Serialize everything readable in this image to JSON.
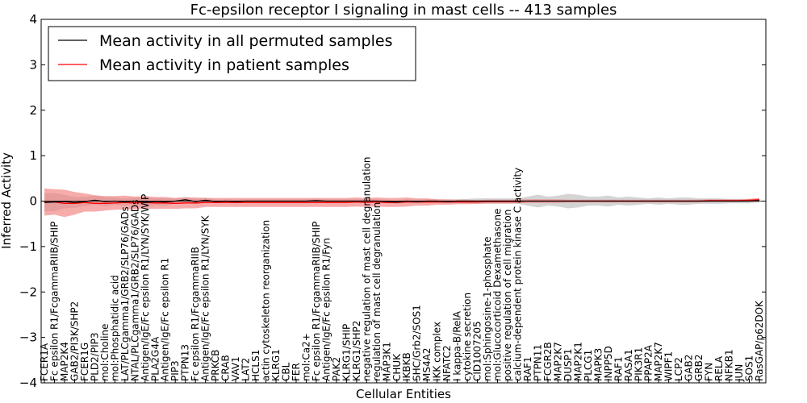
{
  "chart_data": {
    "type": "line",
    "title": "Fc-epsilon receptor I signaling in mast cells -- 413 samples",
    "xlabel": "Cellular Entities",
    "ylabel": "Inferred Activity",
    "ylim": [
      -4,
      4
    ],
    "yticks": [
      "-4",
      "-3",
      "-2",
      "-1",
      "0",
      "1",
      "2",
      "3",
      "4"
    ],
    "legend": {
      "position": "top-left",
      "entries": [
        {
          "label": "Mean activity in all permuted samples",
          "color": "#000000"
        },
        {
          "label": "Mean activity in patient samples",
          "color": "#ff0000"
        }
      ]
    },
    "categories": [
      "FCER1A",
      "Fc epsilon R1/FcgammaRIIB/SHIP",
      "MAP2K4",
      "GAB2/PI3K/SHP2",
      "FCER1G",
      "PLD2/PIP3",
      "mol:Choline",
      "mol:Phosphatidic acid",
      "LAT/PLCgamma1/GRB2/SLP76/GADs",
      "NTAL/PLCgamma1/GRB2/SLP76/GADs",
      "Antigen/IgE/Fc epsilon R1/LYN/SYK/WIP",
      "PLA2G4A",
      "Antigen/IgE/Fc epsilon R1",
      "PIP3",
      "PTPN13",
      "Fc epsilon R1/FcgammaRIIB",
      "Antigen/IgE/Fc epsilon R1/LYN/SYK",
      "PRKCB",
      "CRAB",
      "VAV1",
      "LAT2",
      "HCLS1",
      "actin cytoskeleton reorganization",
      "KLRG1",
      "CBL",
      "FER",
      "mol:Ca2+",
      "Fc epsilon R1/FcgammaRIIB/SHIP",
      "Antigen/IgE/Fc epsilon R1/Fyn",
      "PAK2",
      "KLRG1/SHIP",
      "KLRG1/SHP2",
      "negative regulation of mast cell degranulation",
      "regulation of mast cell degranulation",
      "MAP3K1",
      "CHUK",
      "IKBKB",
      "SHC/Grb2/SOS1",
      "MS4A2",
      "IKK complex",
      "NFATC2",
      "I kappa-B/RelA",
      "cytokine secretion",
      "CID1007205",
      "mol:Sphingosine-1-phosphate",
      "mol:Glucocorticoid Dexamethasone",
      "positive regulation of cell migration",
      "calcium-dependent protein kinase C activity",
      "RAF1",
      "PTPN11",
      "FCGR2B",
      "MAP2K7",
      "DUSP1",
      "MAP2K1",
      "PLCG1",
      "MAPK3",
      "INPP5D",
      "RAF1",
      "RASA1",
      "PIK3R1",
      "PPAP2A",
      "MAP2K7",
      "WIPF1",
      "LCP2",
      "GAB2",
      "GRB2",
      "FYN",
      "RELA",
      "NFKB1",
      "JUN",
      "SOS1",
      "RasGAP/p62DOK"
    ],
    "series": [
      {
        "name": "Mean activity in all permuted samples",
        "color": "#000000",
        "values": [
          -0.03,
          -0.02,
          -0.01,
          -0.03,
          -0.01,
          0.02,
          -0.01,
          0.0,
          -0.02,
          0.0,
          -0.03,
          -0.01,
          -0.02,
          0.0,
          0.03,
          -0.01,
          0.02,
          -0.01,
          0.0,
          -0.01,
          0.0,
          0.0,
          0.0,
          0.0,
          0.0,
          0.0,
          0.0,
          0.01,
          0.0,
          0.0,
          0.0,
          0.0,
          0.0,
          0.0,
          -0.01,
          -0.02,
          0.0,
          -0.01,
          0.0,
          0.0,
          -0.01,
          0.0,
          0.0,
          0.0,
          0.0,
          0.0,
          0.0,
          0.0,
          0.0,
          0.0,
          0.0,
          0.0,
          0.0,
          0.0,
          0.0,
          0.0,
          0.0,
          0.0,
          0.0,
          0.0,
          0.0,
          0.0,
          0.0,
          0.0,
          0.0,
          0.0,
          0.0,
          0.0,
          0.0,
          0.0,
          0.0,
          0.01
        ],
        "spread": [
          0.2,
          0.2,
          0.15,
          0.12,
          0.1,
          0.1,
          0.1,
          0.08,
          0.08,
          0.08,
          0.1,
          0.08,
          0.08,
          0.06,
          0.06,
          0.06,
          0.06,
          0.04,
          0.04,
          0.04,
          0.04,
          0.04,
          0.04,
          0.04,
          0.04,
          0.04,
          0.04,
          0.04,
          0.04,
          0.04,
          0.04,
          0.04,
          0.04,
          0.04,
          0.04,
          0.04,
          0.04,
          0.04,
          0.04,
          0.04,
          0.04,
          0.04,
          0.05,
          0.06,
          0.06,
          0.06,
          0.06,
          0.06,
          0.1,
          0.14,
          0.1,
          0.12,
          0.16,
          0.14,
          0.1,
          0.1,
          0.12,
          0.08,
          0.1,
          0.08,
          0.06,
          0.08,
          0.06,
          0.08,
          0.08,
          0.06,
          0.06,
          0.06,
          0.05,
          0.05,
          0.05,
          0.04
        ]
      },
      {
        "name": "Mean activity in patient samples",
        "color": "#ff0000",
        "values": [
          -0.02,
          -0.02,
          -0.05,
          -0.05,
          -0.03,
          -0.05,
          -0.05,
          -0.04,
          -0.03,
          -0.04,
          -0.03,
          -0.04,
          -0.04,
          -0.05,
          -0.04,
          -0.04,
          -0.03,
          -0.03,
          -0.03,
          -0.03,
          -0.03,
          -0.03,
          -0.03,
          -0.03,
          -0.03,
          -0.03,
          -0.03,
          -0.03,
          -0.03,
          -0.03,
          -0.03,
          -0.02,
          -0.03,
          -0.02,
          -0.03,
          -0.03,
          -0.02,
          -0.02,
          -0.02,
          -0.02,
          -0.02,
          -0.02,
          -0.02,
          -0.02,
          -0.01,
          -0.01,
          -0.01,
          -0.01,
          0.0,
          0.0,
          0.0,
          0.0,
          0.0,
          0.0,
          0.0,
          0.0,
          0.0,
          0.0,
          0.0,
          0.0,
          0.0,
          0.0,
          0.0,
          0.0,
          0.0,
          0.0,
          0.01,
          0.01,
          0.01,
          0.01,
          0.02,
          0.03
        ],
        "spread": [
          0.3,
          0.28,
          0.3,
          0.25,
          0.2,
          0.18,
          0.16,
          0.15,
          0.15,
          0.14,
          0.14,
          0.13,
          0.13,
          0.12,
          0.12,
          0.12,
          0.1,
          0.1,
          0.1,
          0.1,
          0.1,
          0.1,
          0.1,
          0.1,
          0.1,
          0.1,
          0.1,
          0.1,
          0.1,
          0.1,
          0.1,
          0.1,
          0.1,
          0.1,
          0.1,
          0.1,
          0.1,
          0.08,
          0.08,
          0.06,
          0.06,
          0.05,
          0.05,
          0.04,
          0.04,
          0.04,
          0.04,
          0.04,
          0.04,
          0.04,
          0.04,
          0.04,
          0.03,
          0.03,
          0.03,
          0.03,
          0.03,
          0.03,
          0.03,
          0.03,
          0.03,
          0.03,
          0.03,
          0.03,
          0.03,
          0.03,
          0.03,
          0.03,
          0.03,
          0.03,
          0.03,
          0.04
        ]
      }
    ]
  }
}
